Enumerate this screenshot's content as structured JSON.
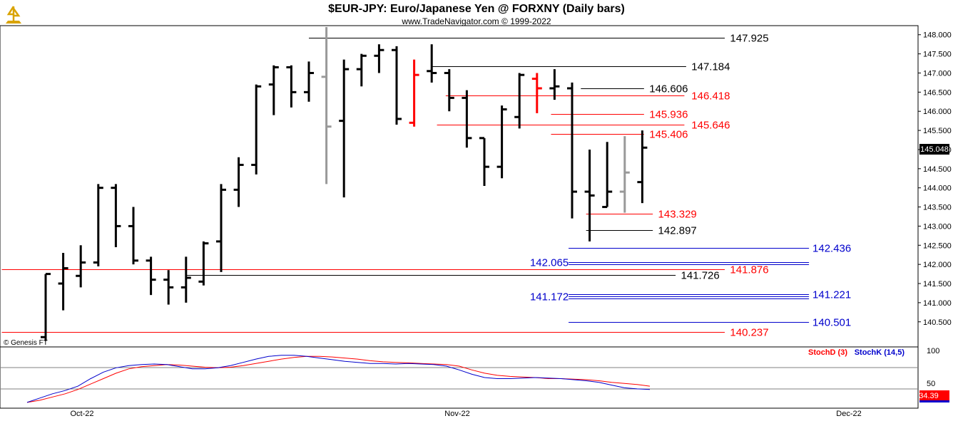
{
  "header": {
    "title": "$EUR-JPY:  Euro/Japanese Yen @ FORXNY  (Daily bars)",
    "subtitle": "www.TradeNavigator.com © 1999-2022"
  },
  "watermark": "© Genesis FT",
  "logo": {
    "icon": "trade-navigator-logo-icon",
    "color": "#d9a300"
  },
  "colors": {
    "up": "#000000",
    "grey": "#999999",
    "red": "#ff0000",
    "blue": "#0000cc",
    "stochK": "#0000cc",
    "stochD": "#ff0000",
    "grid": "#c0c0c0"
  },
  "chart_data": [
    {
      "type": "ohlc",
      "ylim": [
        139.9,
        148.2
      ],
      "yticks": [
        "148.000",
        "147.500",
        "147.000",
        "146.500",
        "146.000",
        "145.500",
        "145.000",
        "144.500",
        "144.000",
        "143.500",
        "143.000",
        "142.500",
        "142.000",
        "141.500",
        "141.000",
        "140.500"
      ],
      "xticks": [
        {
          "label": "Oct-22",
          "index": 3
        },
        {
          "label": "Nov-22",
          "index": 25
        },
        {
          "label": "Dec-22",
          "index": 47
        }
      ],
      "last_price": "145.048",
      "bars": [
        {
          "o": 140.1,
          "h": 141.75,
          "l": 140.0,
          "c": 141.75,
          "color": "black"
        },
        {
          "o": 141.5,
          "h": 142.3,
          "l": 140.8,
          "c": 141.9,
          "color": "black"
        },
        {
          "o": 141.7,
          "h": 142.5,
          "l": 141.4,
          "c": 142.05,
          "color": "black"
        },
        {
          "o": 142.05,
          "h": 144.1,
          "l": 141.95,
          "c": 144.0,
          "color": "black"
        },
        {
          "o": 144.0,
          "h": 144.1,
          "l": 142.45,
          "c": 143.0,
          "color": "black"
        },
        {
          "o": 143.0,
          "h": 143.5,
          "l": 142.0,
          "c": 142.1,
          "color": "black"
        },
        {
          "o": 142.1,
          "h": 142.2,
          "l": 141.2,
          "c": 141.6,
          "color": "black"
        },
        {
          "o": 141.6,
          "h": 141.85,
          "l": 140.95,
          "c": 141.4,
          "color": "black"
        },
        {
          "o": 141.4,
          "h": 142.2,
          "l": 141.0,
          "c": 141.65,
          "color": "black"
        },
        {
          "o": 141.55,
          "h": 142.6,
          "l": 141.45,
          "c": 142.55,
          "color": "black"
        },
        {
          "o": 142.6,
          "h": 144.1,
          "l": 141.8,
          "c": 143.95,
          "color": "black"
        },
        {
          "o": 143.95,
          "h": 144.8,
          "l": 143.5,
          "c": 144.6,
          "color": "black"
        },
        {
          "o": 144.6,
          "h": 146.7,
          "l": 144.35,
          "c": 146.65,
          "color": "black"
        },
        {
          "o": 146.7,
          "h": 147.2,
          "l": 145.9,
          "c": 147.15,
          "color": "black"
        },
        {
          "o": 147.15,
          "h": 147.2,
          "l": 146.1,
          "c": 146.5,
          "color": "black"
        },
        {
          "o": 146.5,
          "h": 147.3,
          "l": 146.25,
          "c": 147.0,
          "color": "black"
        },
        {
          "o": 146.9,
          "h": 148.2,
          "l": 144.1,
          "c": 145.6,
          "color": "grey"
        },
        {
          "o": 145.75,
          "h": 147.35,
          "l": 143.75,
          "c": 147.1,
          "color": "black"
        },
        {
          "o": 147.1,
          "h": 147.5,
          "l": 146.65,
          "c": 147.45,
          "color": "black"
        },
        {
          "o": 147.45,
          "h": 147.75,
          "l": 147.0,
          "c": 147.6,
          "color": "black"
        },
        {
          "o": 147.6,
          "h": 147.7,
          "l": 145.65,
          "c": 145.8,
          "color": "black"
        },
        {
          "o": 145.7,
          "h": 147.35,
          "l": 145.6,
          "c": 146.95,
          "color": "red"
        },
        {
          "o": 147.05,
          "h": 147.75,
          "l": 146.75,
          "c": 147.0,
          "color": "black"
        },
        {
          "o": 147.0,
          "h": 147.1,
          "l": 146.0,
          "c": 146.35,
          "color": "black"
        },
        {
          "o": 146.35,
          "h": 146.55,
          "l": 145.05,
          "c": 145.3,
          "color": "black"
        },
        {
          "o": 145.3,
          "h": 145.3,
          "l": 144.05,
          "c": 144.55,
          "color": "black"
        },
        {
          "o": 144.55,
          "h": 146.15,
          "l": 144.25,
          "c": 146.05,
          "color": "black"
        },
        {
          "o": 145.85,
          "h": 147.0,
          "l": 145.55,
          "c": 146.95,
          "color": "black"
        },
        {
          "o": 146.85,
          "h": 147.0,
          "l": 145.95,
          "c": 146.6,
          "color": "red"
        },
        {
          "o": 146.6,
          "h": 147.1,
          "l": 146.3,
          "c": 146.65,
          "color": "black"
        },
        {
          "o": 146.6,
          "h": 146.75,
          "l": 143.2,
          "c": 143.9,
          "color": "black"
        },
        {
          "o": 143.9,
          "h": 145.0,
          "l": 142.6,
          "c": 143.8,
          "color": "black"
        },
        {
          "o": 143.5,
          "h": 145.2,
          "l": 143.5,
          "c": 143.9,
          "color": "black"
        },
        {
          "o": 143.9,
          "h": 145.35,
          "l": 143.35,
          "c": 144.4,
          "color": "grey"
        },
        {
          "o": 144.15,
          "h": 145.5,
          "l": 143.6,
          "c": 145.05,
          "color": "black"
        }
      ],
      "levels": [
        {
          "value": 147.925,
          "label": "147.925",
          "color": "black",
          "from": 15,
          "to": 38.7,
          "labelAt": 39
        },
        {
          "value": 147.184,
          "label": "147.184",
          "color": "black",
          "from": 22,
          "to": 36.5,
          "labelAt": 36.8
        },
        {
          "value": 146.606,
          "label": "146.606",
          "color": "black",
          "from": 30.5,
          "to": 34.1,
          "labelAt": 34.4
        },
        {
          "value": 146.418,
          "label": "146.418",
          "color": "red",
          "from": 22.8,
          "to": 36.4,
          "labelAt": 36.8
        },
        {
          "value": 145.936,
          "label": "145.936",
          "color": "red",
          "from": 28.8,
          "to": 34.1,
          "labelAt": 34.4
        },
        {
          "value": 145.646,
          "label": "145.646",
          "color": "red",
          "from": 22.3,
          "to": 36.4,
          "labelAt": 36.8
        },
        {
          "value": 145.406,
          "label": "145.406",
          "color": "red",
          "from": 28.8,
          "to": 34.1,
          "labelAt": 34.4
        },
        {
          "value": 143.329,
          "label": "143.329",
          "color": "red",
          "from": 30.8,
          "to": 34.6,
          "labelAt": 34.9
        },
        {
          "value": 142.897,
          "label": "142.897",
          "color": "black",
          "from": 30.8,
          "to": 34.6,
          "labelAt": 34.9
        },
        {
          "value": 142.436,
          "label": "142.436",
          "color": "blue",
          "from": 29.8,
          "to": 43.5,
          "labelAt": 43.7
        },
        {
          "value": 142.065,
          "label": "142.065",
          "color": "blue",
          "from": 29.8,
          "to": 43.5,
          "labelAt": 27.6
        },
        {
          "value": 141.876,
          "label": "141.876",
          "color": "red",
          "from": -2.5,
          "to": 38.7,
          "labelAt": 39
        },
        {
          "value": 141.726,
          "label": "141.726",
          "color": "black",
          "from": 8,
          "to": 35.9,
          "labelAt": 36.2
        },
        {
          "value": 141.221,
          "label": "141.221",
          "color": "blue",
          "from": 29.8,
          "to": 43.5,
          "labelAt": 43.7
        },
        {
          "value": 141.172,
          "label": "141.172",
          "color": "blue",
          "from": 29.8,
          "to": 43.5,
          "labelAt": 27.6
        },
        {
          "value": 140.501,
          "label": "140.501",
          "color": "blue",
          "from": 29.8,
          "to": 43.5,
          "labelAt": 43.7
        },
        {
          "value": 140.237,
          "label": "140.237",
          "color": "red",
          "from": -2.5,
          "to": 38.7,
          "labelAt": 39
        }
      ]
    },
    {
      "type": "line",
      "title": "Stochastic",
      "ylim": [
        0,
        100
      ],
      "yticks": [
        "100",
        "50"
      ],
      "last_value": "34.39",
      "series": [
        {
          "name": "StochD (3)",
          "color": "red",
          "values": [
            8,
            12,
            18,
            24,
            32,
            42,
            52,
            62,
            70,
            74,
            76,
            78,
            77,
            75,
            73,
            72,
            73,
            76,
            80,
            84,
            88,
            91,
            93,
            93,
            92,
            90,
            88,
            85,
            83,
            82,
            81,
            80,
            79,
            78,
            75,
            68,
            62,
            58,
            56,
            55,
            54,
            52,
            52,
            51,
            50,
            48,
            45,
            43,
            41,
            38
          ]
        },
        {
          "name": "StochK (14,5)",
          "color": "blue",
          "values": [
            8,
            16,
            24,
            30,
            38,
            52,
            64,
            72,
            76,
            78,
            79,
            78,
            74,
            70,
            70,
            72,
            76,
            82,
            88,
            93,
            95,
            95,
            93,
            90,
            87,
            84,
            82,
            80,
            80,
            79,
            80,
            79,
            78,
            75,
            68,
            60,
            54,
            52,
            52,
            53,
            54,
            53,
            52,
            50,
            48,
            45,
            40,
            35,
            33,
            32
          ]
        }
      ]
    }
  ]
}
